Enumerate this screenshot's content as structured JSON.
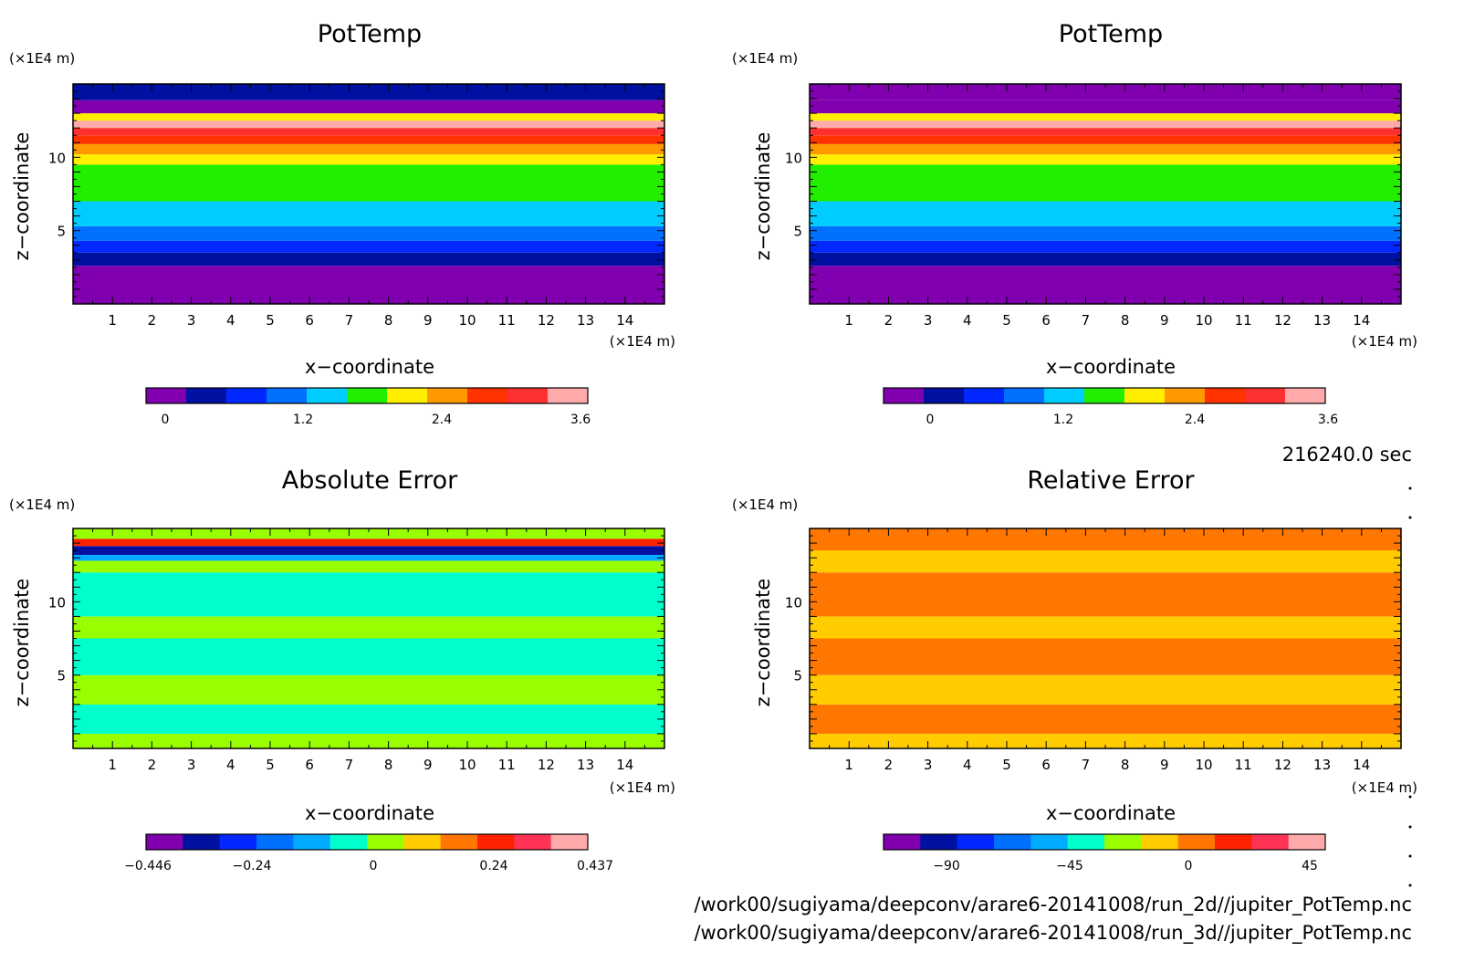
{
  "panels": [
    {
      "title": "PotTemp",
      "ylabel": "z−coordinate",
      "xlabel": "x−coordinate",
      "yunit": "(×1E4 m)",
      "xunit": "(×1E4 m)",
      "colorbar": {
        "colors": [
          "#8000b0",
          "#0010a0",
          "#0028ff",
          "#0070ff",
          "#00ccff",
          "#22ee00",
          "#ffee00",
          "#ff9900",
          "#ff3300",
          "#ff3030",
          "#ffaaaa"
        ],
        "tick_labels": [
          "0",
          "1.2",
          "2.4",
          "3.6"
        ]
      }
    },
    {
      "title": "PotTemp",
      "ylabel": "z−coordinate",
      "xlabel": "x−coordinate",
      "yunit": "(×1E4 m)",
      "xunit": "(×1E4 m)",
      "colorbar": {
        "colors": [
          "#8000b0",
          "#0010a0",
          "#0028ff",
          "#0070ff",
          "#00ccff",
          "#22ee00",
          "#ffee00",
          "#ff9900",
          "#ff3300",
          "#ff3030",
          "#ffaaaa"
        ],
        "tick_labels": [
          "0",
          "1.2",
          "2.4",
          "3.6"
        ]
      }
    },
    {
      "title": "Absolute Error",
      "ylabel": "z−coordinate",
      "xlabel": "x−coordinate",
      "yunit": "(×1E4 m)",
      "xunit": "(×1E4 m)",
      "colorbar": {
        "colors": [
          "#8000b0",
          "#0010a0",
          "#0028ff",
          "#0070ff",
          "#00aaff",
          "#00ffcc",
          "#99ff00",
          "#ffcc00",
          "#ff7700",
          "#ff2200",
          "#ff3355",
          "#ffaaaa"
        ],
        "tick_labels": [
          "−0.446",
          "−0.24",
          "0",
          "0.24",
          "0.437"
        ]
      }
    },
    {
      "title": "Relative Error",
      "ylabel": "z−coordinate",
      "xlabel": "x−coordinate",
      "yunit": "(×1E4 m)",
      "xunit": "(×1E4 m)",
      "colorbar": {
        "colors": [
          "#8000b0",
          "#0010a0",
          "#0028ff",
          "#0070ff",
          "#00aaff",
          "#00ffcc",
          "#99ff00",
          "#ffcc00",
          "#ff7700",
          "#ff2200",
          "#ff3355",
          "#ffaaaa"
        ],
        "tick_labels": [
          "−90",
          "−45",
          "0",
          "45"
        ]
      }
    }
  ],
  "timestamp": "216240.0 sec",
  "files": [
    "/work00/sugiyama/deepconv/arare6-20141008/run_2d//jupiter_PotTemp.nc",
    "/work00/sugiyama/deepconv/arare6-20141008/run_3d//jupiter_PotTemp.nc"
  ],
  "chart_data": [
    {
      "type": "heatmap",
      "title": "PotTemp",
      "xlabel": "x−coordinate",
      "ylabel": "z−coordinate",
      "xunit": "(×1E4 m)",
      "yunit": "(×1E4 m)",
      "x_ticks": [
        1,
        2,
        3,
        4,
        5,
        6,
        7,
        8,
        9,
        10,
        11,
        12,
        13,
        14
      ],
      "y_ticks": [
        5,
        10
      ],
      "xlim": [
        0,
        15
      ],
      "ylim": [
        0,
        15
      ],
      "colorbar_ticks": [
        0,
        1.2,
        2.4,
        3.6
      ],
      "z_bands": [
        {
          "z_from": 0.0,
          "z_to": 2.6,
          "level": 0
        },
        {
          "z_from": 2.6,
          "z_to": 3.5,
          "level": 1
        },
        {
          "z_from": 3.5,
          "z_to": 4.3,
          "level": 2
        },
        {
          "z_from": 4.3,
          "z_to": 5.3,
          "level": 3
        },
        {
          "z_from": 5.3,
          "z_to": 7.0,
          "level": 4
        },
        {
          "z_from": 7.0,
          "z_to": 9.5,
          "level": 5
        },
        {
          "z_from": 9.5,
          "z_to": 10.2,
          "level": 6
        },
        {
          "z_from": 10.2,
          "z_to": 10.9,
          "level": 7
        },
        {
          "z_from": 10.9,
          "z_to": 11.5,
          "level": 8
        },
        {
          "z_from": 11.5,
          "z_to": 12.0,
          "level": 9
        },
        {
          "z_from": 12.0,
          "z_to": 12.5,
          "level": 10
        },
        {
          "z_from": 12.5,
          "z_to": 13.0,
          "level": 6
        },
        {
          "z_from": 13.0,
          "z_to": 13.9,
          "level": 0
        },
        {
          "z_from": 13.9,
          "z_to": 15.0,
          "level": 1
        }
      ]
    },
    {
      "type": "heatmap",
      "title": "PotTemp",
      "xlabel": "x−coordinate",
      "ylabel": "z−coordinate",
      "xunit": "(×1E4 m)",
      "yunit": "(×1E4 m)",
      "x_ticks": [
        1,
        2,
        3,
        4,
        5,
        6,
        7,
        8,
        9,
        10,
        11,
        12,
        13,
        14
      ],
      "y_ticks": [
        5,
        10
      ],
      "xlim": [
        0,
        15
      ],
      "ylim": [
        0,
        15
      ],
      "colorbar_ticks": [
        0,
        1.2,
        2.4,
        3.6
      ],
      "z_bands": [
        {
          "z_from": 0.0,
          "z_to": 2.6,
          "level": 0
        },
        {
          "z_from": 2.6,
          "z_to": 3.5,
          "level": 1
        },
        {
          "z_from": 3.5,
          "z_to": 4.3,
          "level": 2
        },
        {
          "z_from": 4.3,
          "z_to": 5.3,
          "level": 3
        },
        {
          "z_from": 5.3,
          "z_to": 7.0,
          "level": 4
        },
        {
          "z_from": 7.0,
          "z_to": 9.5,
          "level": 5
        },
        {
          "z_from": 9.5,
          "z_to": 10.2,
          "level": 6
        },
        {
          "z_from": 10.2,
          "z_to": 10.9,
          "level": 7
        },
        {
          "z_from": 10.9,
          "z_to": 11.5,
          "level": 8
        },
        {
          "z_from": 11.5,
          "z_to": 12.0,
          "level": 9
        },
        {
          "z_from": 12.0,
          "z_to": 12.5,
          "level": 10
        },
        {
          "z_from": 12.5,
          "z_to": 13.0,
          "level": 6
        },
        {
          "z_from": 13.0,
          "z_to": 13.9,
          "level": 0
        },
        {
          "z_from": 13.9,
          "z_to": 15.0,
          "level": 0
        }
      ]
    },
    {
      "type": "heatmap",
      "title": "Absolute Error",
      "xlabel": "x−coordinate",
      "ylabel": "z−coordinate",
      "xunit": "(×1E4 m)",
      "yunit": "(×1E4 m)",
      "x_ticks": [
        1,
        2,
        3,
        4,
        5,
        6,
        7,
        8,
        9,
        10,
        11,
        12,
        13,
        14
      ],
      "y_ticks": [
        5,
        10
      ],
      "xlim": [
        0,
        15
      ],
      "ylim": [
        0,
        15
      ],
      "colorbar_ticks": [
        -0.446,
        -0.24,
        0,
        0.24,
        0.437
      ],
      "z_bands": [
        {
          "z_from": 0.0,
          "z_to": 1.0,
          "level": 6
        },
        {
          "z_from": 1.0,
          "z_to": 3.0,
          "level": 5
        },
        {
          "z_from": 3.0,
          "z_to": 5.0,
          "level": 6
        },
        {
          "z_from": 5.0,
          "z_to": 7.5,
          "level": 5
        },
        {
          "z_from": 7.5,
          "z_to": 9.0,
          "level": 6
        },
        {
          "z_from": 9.0,
          "z_to": 12.0,
          "level": 5
        },
        {
          "z_from": 12.0,
          "z_to": 12.8,
          "level": 6
        },
        {
          "z_from": 12.8,
          "z_to": 13.2,
          "level": 4
        },
        {
          "z_from": 13.2,
          "z_to": 13.8,
          "level": 1
        },
        {
          "z_from": 13.8,
          "z_to": 14.3,
          "level": 9
        },
        {
          "z_from": 14.3,
          "z_to": 15.0,
          "level": 6
        }
      ]
    },
    {
      "type": "heatmap",
      "title": "Relative Error",
      "xlabel": "x−coordinate",
      "ylabel": "z−coordinate",
      "xunit": "(×1E4 m)",
      "yunit": "(×1E4 m)",
      "x_ticks": [
        1,
        2,
        3,
        4,
        5,
        6,
        7,
        8,
        9,
        10,
        11,
        12,
        13,
        14
      ],
      "y_ticks": [
        5,
        10
      ],
      "xlim": [
        0,
        15
      ],
      "ylim": [
        0,
        15
      ],
      "colorbar_ticks": [
        -90,
        -45,
        0,
        45
      ],
      "z_bands": [
        {
          "z_from": 0.0,
          "z_to": 1.0,
          "level": 7
        },
        {
          "z_from": 1.0,
          "z_to": 3.0,
          "level": 8
        },
        {
          "z_from": 3.0,
          "z_to": 5.0,
          "level": 7
        },
        {
          "z_from": 5.0,
          "z_to": 7.5,
          "level": 8
        },
        {
          "z_from": 7.5,
          "z_to": 9.0,
          "level": 7
        },
        {
          "z_from": 9.0,
          "z_to": 12.0,
          "level": 8
        },
        {
          "z_from": 12.0,
          "z_to": 13.5,
          "level": 7
        },
        {
          "z_from": 13.5,
          "z_to": 15.0,
          "level": 8
        }
      ]
    }
  ]
}
